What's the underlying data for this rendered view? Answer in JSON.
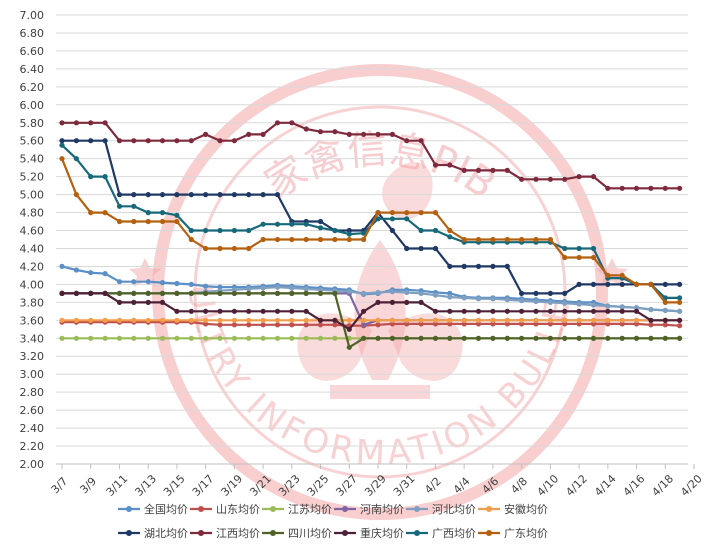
{
  "chart_data": {
    "type": "line",
    "title": "",
    "xlabel": "",
    "ylabel": "",
    "ylim": [
      2.0,
      7.0
    ],
    "y_ticks": [
      "7.00",
      "6.80",
      "6.60",
      "6.40",
      "6.20",
      "6.00",
      "5.80",
      "5.60",
      "5.40",
      "5.20",
      "5.00",
      "4.80",
      "4.60",
      "4.40",
      "4.20",
      "4.00",
      "3.80",
      "3.60",
      "3.40",
      "3.20",
      "3.00",
      "2.80",
      "2.60",
      "2.40",
      "2.20",
      "2.00"
    ],
    "x_ticks": [
      "3/7",
      "3/9",
      "3/11",
      "3/13",
      "3/15",
      "3/17",
      "3/19",
      "3/21",
      "3/23",
      "3/25",
      "3/27",
      "3/29",
      "3/31",
      "4/2",
      "4/4",
      "4/6",
      "4/8",
      "4/10",
      "4/12",
      "4/14",
      "4/16",
      "4/18",
      "4/20"
    ],
    "x": [
      "3/7",
      "3/8",
      "3/9",
      "3/10",
      "3/11",
      "3/12",
      "3/13",
      "3/14",
      "3/15",
      "3/16",
      "3/17",
      "3/18",
      "3/19",
      "3/20",
      "3/21",
      "3/22",
      "3/23",
      "3/24",
      "3/25",
      "3/26",
      "3/27",
      "3/28",
      "3/29",
      "3/30",
      "3/31",
      "4/1",
      "4/2",
      "4/3",
      "4/4",
      "4/5",
      "4/6",
      "4/7",
      "4/8",
      "4/9",
      "4/10",
      "4/11",
      "4/12",
      "4/13",
      "4/14",
      "4/15",
      "4/16",
      "4/17",
      "4/18",
      "4/19"
    ],
    "grid": true,
    "legend_position": "bottom",
    "series": [
      {
        "name": "全国均价",
        "color": "#5b8fc7",
        "values": [
          4.2,
          4.16,
          4.13,
          4.12,
          4.03,
          4.03,
          4.03,
          4.02,
          4.01,
          4.0,
          3.98,
          3.97,
          3.97,
          3.97,
          3.98,
          3.99,
          3.98,
          3.97,
          3.96,
          3.95,
          3.94,
          3.89,
          3.9,
          3.94,
          3.94,
          3.93,
          3.91,
          3.9,
          3.86,
          3.85,
          3.85,
          3.85,
          3.84,
          3.83,
          3.82,
          3.81,
          3.8,
          3.8,
          3.76,
          3.75,
          3.74,
          3.72,
          3.71,
          3.7
        ]
      },
      {
        "name": "山东均价",
        "color": "#c0504d",
        "values": [
          3.58,
          3.58,
          3.58,
          3.58,
          3.58,
          3.58,
          3.58,
          3.58,
          3.58,
          3.58,
          3.56,
          3.55,
          3.55,
          3.55,
          3.55,
          3.55,
          3.55,
          3.55,
          3.55,
          3.55,
          3.54,
          3.54,
          3.55,
          3.56,
          3.56,
          3.56,
          3.56,
          3.56,
          3.56,
          3.56,
          3.56,
          3.56,
          3.56,
          3.56,
          3.56,
          3.56,
          3.56,
          3.56,
          3.56,
          3.56,
          3.56,
          3.55,
          3.55,
          3.54
        ]
      },
      {
        "name": "江苏均价",
        "color": "#9bbb59",
        "values": [
          3.4,
          3.4,
          3.4,
          3.4,
          3.4,
          3.4,
          3.4,
          3.4,
          3.4,
          3.4,
          3.4,
          3.4,
          3.4,
          3.4,
          3.4,
          3.4,
          3.4,
          3.4,
          3.4,
          3.4,
          3.4,
          3.4,
          3.4,
          3.4,
          3.4,
          3.4,
          3.4,
          3.4,
          3.4,
          3.4,
          3.4,
          3.4,
          3.4,
          3.4,
          3.4,
          3.4,
          3.4,
          3.4,
          3.4,
          3.4,
          3.4,
          3.4,
          3.4,
          3.4
        ]
      },
      {
        "name": "河南均价",
        "color": "#8064a2",
        "values": [
          3.9,
          3.9,
          3.9,
          3.9,
          3.9,
          3.9,
          3.9,
          3.9,
          3.9,
          3.9,
          3.9,
          3.9,
          3.9,
          3.9,
          3.9,
          3.9,
          3.9,
          3.9,
          3.9,
          3.9,
          3.9,
          3.55,
          3.6,
          3.6,
          3.6,
          3.6,
          3.6,
          3.6,
          3.6,
          3.6,
          3.6,
          3.6,
          3.6,
          3.6,
          3.6,
          3.6,
          3.6,
          3.6,
          3.6,
          3.6,
          3.6,
          3.6,
          3.6,
          3.6
        ]
      },
      {
        "name": "河北均价",
        "color": "#7f9fc0",
        "values": [
          3.9,
          3.9,
          3.9,
          3.9,
          3.9,
          3.9,
          3.9,
          3.9,
          3.9,
          3.9,
          3.92,
          3.93,
          3.94,
          3.95,
          3.96,
          3.97,
          3.96,
          3.95,
          3.94,
          3.93,
          3.92,
          3.9,
          3.91,
          3.92,
          3.91,
          3.9,
          3.88,
          3.86,
          3.85,
          3.84,
          3.84,
          3.83,
          3.82,
          3.81,
          3.8,
          3.79,
          3.78,
          3.77,
          3.76,
          3.75,
          3.74,
          3.72,
          3.71,
          3.7
        ]
      },
      {
        "name": "安徽均价",
        "color": "#f29d4b",
        "values": [
          3.6,
          3.6,
          3.6,
          3.6,
          3.6,
          3.6,
          3.6,
          3.6,
          3.6,
          3.6,
          3.6,
          3.6,
          3.6,
          3.6,
          3.6,
          3.6,
          3.6,
          3.6,
          3.6,
          3.6,
          3.6,
          3.6,
          3.6,
          3.6,
          3.6,
          3.6,
          3.6,
          3.6,
          3.6,
          3.6,
          3.6,
          3.6,
          3.6,
          3.6,
          3.6,
          3.6,
          3.6,
          3.6,
          3.6,
          3.6,
          3.6,
          3.6,
          3.6,
          3.6
        ]
      },
      {
        "name": "湖北均价",
        "color": "#1f3864",
        "values": [
          5.6,
          5.6,
          5.6,
          5.6,
          5.0,
          5.0,
          5.0,
          5.0,
          5.0,
          5.0,
          5.0,
          5.0,
          5.0,
          5.0,
          5.0,
          5.0,
          4.7,
          4.7,
          4.7,
          4.6,
          4.6,
          4.6,
          4.8,
          4.6,
          4.4,
          4.4,
          4.4,
          4.2,
          4.2,
          4.2,
          4.2,
          4.2,
          3.9,
          3.9,
          3.9,
          3.9,
          4.0,
          4.0,
          4.0,
          4.0,
          4.0,
          4.0,
          4.0,
          4.0
        ]
      },
      {
        "name": "江西均价",
        "color": "#7f2a3c",
        "values": [
          5.8,
          5.8,
          5.8,
          5.8,
          5.6,
          5.6,
          5.6,
          5.6,
          5.6,
          5.6,
          5.67,
          5.6,
          5.6,
          5.67,
          5.67,
          5.8,
          5.8,
          5.73,
          5.7,
          5.7,
          5.67,
          5.67,
          5.67,
          5.67,
          5.6,
          5.6,
          5.33,
          5.33,
          5.27,
          5.27,
          5.27,
          5.27,
          5.17,
          5.17,
          5.17,
          5.17,
          5.2,
          5.2,
          5.07,
          5.07,
          5.07,
          5.07,
          5.07,
          5.07
        ]
      },
      {
        "name": "四川均价",
        "color": "#4f6228",
        "values": [
          3.9,
          3.9,
          3.9,
          3.9,
          3.9,
          3.9,
          3.9,
          3.9,
          3.9,
          3.9,
          3.9,
          3.9,
          3.9,
          3.9,
          3.9,
          3.9,
          3.9,
          3.9,
          3.9,
          3.9,
          3.3,
          3.4,
          3.4,
          3.4,
          3.4,
          3.4,
          3.4,
          3.4,
          3.4,
          3.4,
          3.4,
          3.4,
          3.4,
          3.4,
          3.4,
          3.4,
          3.4,
          3.4,
          3.4,
          3.4,
          3.4,
          3.4,
          3.4,
          3.4
        ]
      },
      {
        "name": "重庆均价",
        "color": "#4d2038",
        "values": [
          3.9,
          3.9,
          3.9,
          3.9,
          3.8,
          3.8,
          3.8,
          3.8,
          3.7,
          3.7,
          3.7,
          3.7,
          3.7,
          3.7,
          3.7,
          3.7,
          3.7,
          3.7,
          3.6,
          3.6,
          3.5,
          3.7,
          3.8,
          3.8,
          3.8,
          3.8,
          3.7,
          3.7,
          3.7,
          3.7,
          3.7,
          3.7,
          3.7,
          3.7,
          3.7,
          3.7,
          3.7,
          3.7,
          3.7,
          3.7,
          3.7,
          3.6,
          3.6,
          3.6
        ]
      },
      {
        "name": "广西均价",
        "color": "#17697a",
        "values": [
          5.55,
          5.4,
          5.2,
          5.2,
          4.87,
          4.87,
          4.8,
          4.8,
          4.77,
          4.6,
          4.6,
          4.6,
          4.6,
          4.6,
          4.67,
          4.67,
          4.67,
          4.67,
          4.63,
          4.6,
          4.56,
          4.57,
          4.73,
          4.73,
          4.73,
          4.6,
          4.6,
          4.53,
          4.47,
          4.47,
          4.47,
          4.47,
          4.47,
          4.47,
          4.47,
          4.4,
          4.4,
          4.4,
          4.07,
          4.07,
          4.0,
          4.0,
          3.85,
          3.85
        ]
      },
      {
        "name": "广东均价",
        "color": "#b5600f",
        "values": [
          5.4,
          5.0,
          4.8,
          4.8,
          4.7,
          4.7,
          4.7,
          4.7,
          4.7,
          4.5,
          4.4,
          4.4,
          4.4,
          4.4,
          4.5,
          4.5,
          4.5,
          4.5,
          4.5,
          4.5,
          4.5,
          4.5,
          4.8,
          4.8,
          4.8,
          4.8,
          4.8,
          4.6,
          4.5,
          4.5,
          4.5,
          4.5,
          4.5,
          4.5,
          4.5,
          4.3,
          4.3,
          4.3,
          4.1,
          4.1,
          4.0,
          4.0,
          3.8,
          3.8
        ]
      }
    ]
  },
  "watermark": {
    "text_cn": "家禽信息PIB",
    "text_en": "POULTRY INFORMATION BULLETIN",
    "color": "#f2a5a8"
  }
}
